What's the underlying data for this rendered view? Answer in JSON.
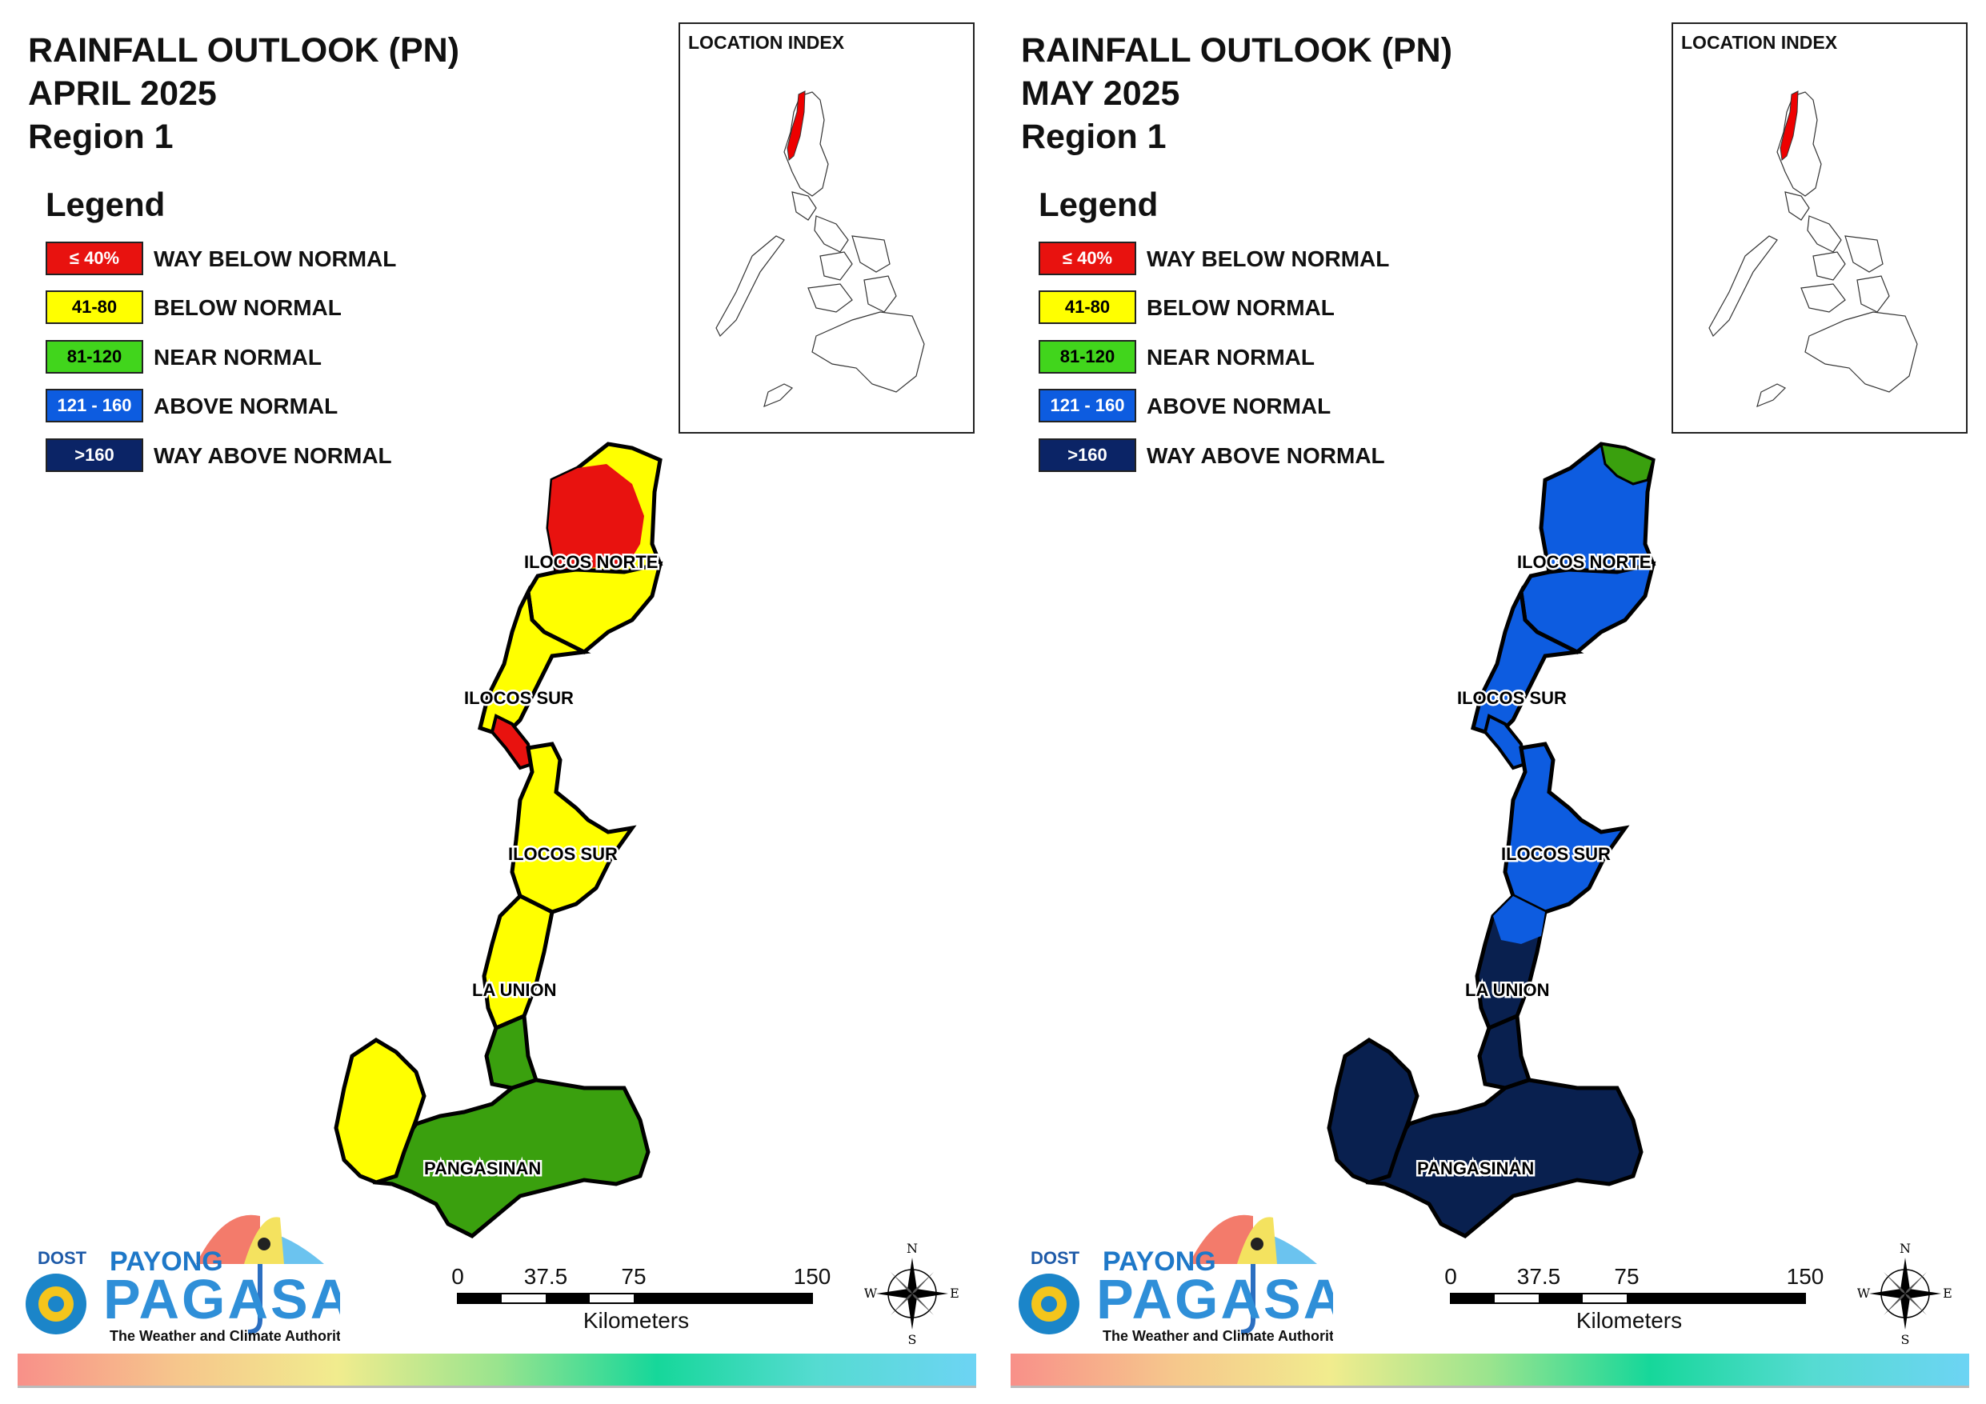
{
  "colors": {
    "way_below": "#e8120f",
    "below": "#ffff00",
    "near": "#3aa00e",
    "near_swatch": "#41d51c",
    "above": "#0d5ce0",
    "way_above": "#09204f"
  },
  "legend": {
    "title": "Legend",
    "items": [
      {
        "range": "≤ 40%",
        "label": "WAY BELOW NORMAL",
        "color": "#e8120f",
        "text_color": "#ffffff"
      },
      {
        "range": "41-80",
        "label": "BELOW NORMAL",
        "color": "#ffff00",
        "text_color": "#000000"
      },
      {
        "range": "81-120",
        "label": "NEAR NORMAL",
        "color": "#41d51c",
        "text_color": "#000000"
      },
      {
        "range": "121 - 160",
        "label": "ABOVE NORMAL",
        "color": "#0d5ce0",
        "text_color": "#ffffff"
      },
      {
        "range": ">160",
        "label": "WAY ABOVE NORMAL",
        "color": "#0b2466",
        "text_color": "#ffffff"
      }
    ]
  },
  "location_index": {
    "title": "LOCATION INDEX"
  },
  "scale": {
    "ticks": [
      "0",
      "37.5",
      "75",
      "150"
    ],
    "unit": "Kilometers"
  },
  "compass": {
    "n": "N",
    "s": "S",
    "e": "E",
    "w": "W"
  },
  "logo": {
    "dost": "DOST",
    "payong": "PAYONG",
    "pagasa": "PAGASA",
    "tagline": "The Weather and Climate Authority"
  },
  "provinces": {
    "ilocos_norte": "ILOCOS NORTE",
    "ilocos_sur_1": "ILOCOS SUR",
    "ilocos_sur_2": "ILOCOS SUR",
    "la_union": "LA UNION",
    "pangasinan": "PANGASINAN"
  },
  "panels": [
    {
      "title_line1": "RAINFALL OUTLOOK (PN)",
      "title_line2": "APRIL 2025",
      "title_line3": "Region 1",
      "map_categories": {
        "ilocos_norte_north": "WAY BELOW NORMAL",
        "ilocos_norte_coast": "BELOW NORMAL",
        "ilocos_norte_south": "BELOW NORMAL",
        "ilocos_sur": "BELOW NORMAL",
        "ilocos_sur_coast_strip": "WAY BELOW NORMAL",
        "la_union": "BELOW NORMAL",
        "la_union_south": "NEAR NORMAL",
        "pangasinan_west": "BELOW NORMAL",
        "pangasinan": "NEAR NORMAL"
      }
    },
    {
      "title_line1": "RAINFALL OUTLOOK (PN)",
      "title_line2": "MAY 2025",
      "title_line3": "Region 1",
      "map_categories": {
        "ilocos_norte_north": "ABOVE NORMAL",
        "ilocos_norte_tip": "NEAR NORMAL",
        "ilocos_norte_coast": "ABOVE NORMAL",
        "ilocos_norte_south": "ABOVE NORMAL",
        "ilocos_sur": "ABOVE NORMAL",
        "ilocos_sur_coast_strip": "ABOVE NORMAL",
        "la_union": "WAY ABOVE NORMAL",
        "la_union_south": "WAY ABOVE NORMAL",
        "pangasinan_west": "WAY ABOVE NORMAL",
        "pangasinan": "WAY ABOVE NORMAL"
      }
    }
  ]
}
